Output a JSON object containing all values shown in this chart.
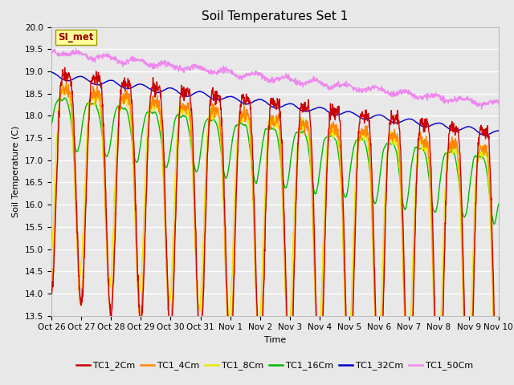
{
  "title": "Soil Temperatures Set 1",
  "xlabel": "Time",
  "ylabel": "Soil Temperature (C)",
  "ylim": [
    13.5,
    20.0
  ],
  "yticks": [
    13.5,
    14.0,
    14.5,
    15.0,
    15.5,
    16.0,
    16.5,
    17.0,
    17.5,
    18.0,
    18.5,
    19.0,
    19.5,
    20.0
  ],
  "n_days": 15,
  "n_points": 1440,
  "xtick_labels": [
    "Oct 26",
    "Oct 27",
    "Oct 28",
    "Oct 29",
    "Oct 30",
    "Oct 31",
    "Nov 1",
    "Nov 2",
    "Nov 3",
    "Nov 4",
    "Nov 5",
    "Nov 6",
    "Nov 7",
    "Nov 8",
    "Nov 9",
    "Nov 10"
  ],
  "series_colors": {
    "TC1_2Cm": "#cc0000",
    "TC1_4Cm": "#ff8800",
    "TC1_8Cm": "#e8e800",
    "TC1_16Cm": "#00bb00",
    "TC1_32Cm": "#0000cc",
    "TC1_50Cm": "#ee88ee"
  },
  "legend_colors": [
    "#cc0000",
    "#ff8800",
    "#e8e800",
    "#00bb00",
    "#0000cc",
    "#ee88ee"
  ],
  "legend_labels": [
    "TC1_2Cm",
    "TC1_4Cm",
    "TC1_8Cm",
    "TC1_16Cm",
    "TC1_32Cm",
    "TC1_50Cm"
  ],
  "bg_color": "#e8e8e8",
  "annotation_text": "SI_met",
  "annotation_color": "#990000",
  "annotation_bg": "#ffff99",
  "title_fontsize": 11,
  "axis_label_fontsize": 8,
  "tick_fontsize": 7.5,
  "linewidth": 1.0
}
